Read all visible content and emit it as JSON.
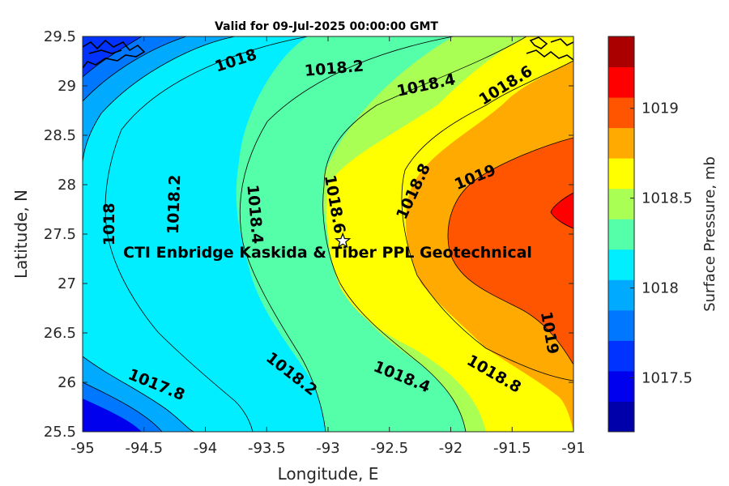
{
  "title": "Valid for 09-Jul-2025 00:00:00 GMT",
  "site_label": "CTI Enbridge  Kaskida & Tiber PPL Geotechnical",
  "site": {
    "lon": -92.88,
    "lat": 27.43
  },
  "colorbar": {
    "label": "Surface Pressure, mb",
    "min": 1017.2,
    "max": 1019.4,
    "ticks": [
      {
        "value": 1017.5,
        "text": "1017.5"
      },
      {
        "value": 1018,
        "text": "1018"
      },
      {
        "value": 1018.5,
        "text": "1018.5"
      },
      {
        "value": 1019,
        "text": "1019"
      }
    ],
    "levels": [
      1017.2,
      1017.3,
      1017.4,
      1017.5,
      1017.6,
      1017.7,
      1017.8,
      1017.9,
      1018.0,
      1018.1,
      1018.2,
      1018.3,
      1018.4,
      1018.5,
      1018.6,
      1018.7,
      1018.8,
      1018.9,
      1019.0,
      1019.1,
      1019.2,
      1019.3,
      1019.4
    ],
    "colors": [
      "#0000aa",
      "#0000ee",
      "#0033ff",
      "#0077ff",
      "#00aaff",
      "#00eeff",
      "#55ffaa",
      "#aaff55",
      "#ffff00",
      "#ffaa00",
      "#ff5500",
      "#ff0000",
      "#aa0000"
    ]
  },
  "chart_data": {
    "type": "contour",
    "title": "Valid for 09-Jul-2025 00:00:00 GMT",
    "xlabel": "Longitude, E",
    "ylabel": "Latitude, N",
    "xlim": [
      -95,
      -91
    ],
    "ylim": [
      25.5,
      29.5
    ],
    "x_ticks": [
      {
        "value": -95,
        "text": "-95"
      },
      {
        "value": -94.5,
        "text": "-94.5"
      },
      {
        "value": -94,
        "text": "-94"
      },
      {
        "value": -93.5,
        "text": "-93.5"
      },
      {
        "value": -93,
        "text": "-93"
      },
      {
        "value": -92.5,
        "text": "-92.5"
      },
      {
        "value": -92,
        "text": "-92"
      },
      {
        "value": -91.5,
        "text": "-91.5"
      },
      {
        "value": -91,
        "text": "-91"
      }
    ],
    "y_ticks": [
      {
        "value": 25.5,
        "text": "25.5"
      },
      {
        "value": 26,
        "text": "26"
      },
      {
        "value": 26.5,
        "text": "26.5"
      },
      {
        "value": 27,
        "text": "27"
      },
      {
        "value": 27.5,
        "text": "27.5"
      },
      {
        "value": 28,
        "text": "28"
      },
      {
        "value": 28.5,
        "text": "28.5"
      },
      {
        "value": 29,
        "text": "29"
      },
      {
        "value": 29.5,
        "text": "29.5"
      }
    ],
    "contour_labels": [
      {
        "text": "1018",
        "lon": -93.75,
        "lat": 29.25,
        "angle": -18
      },
      {
        "text": "1018.2",
        "lon": -92.95,
        "lat": 29.17,
        "angle": -5
      },
      {
        "text": "1018.4",
        "lon": -92.2,
        "lat": 29.0,
        "angle": -12
      },
      {
        "text": "1018.6",
        "lon": -91.55,
        "lat": 29.0,
        "angle": -32
      },
      {
        "text": "1019",
        "lon": -91.8,
        "lat": 28.07,
        "angle": -22
      },
      {
        "text": "1018.8",
        "lon": -92.3,
        "lat": 27.93,
        "angle": -65
      },
      {
        "text": "1018",
        "lon": -94.78,
        "lat": 27.6,
        "angle": -90
      },
      {
        "text": "1018.2",
        "lon": -94.25,
        "lat": 27.8,
        "angle": -88
      },
      {
        "text": "1018.4",
        "lon": -93.6,
        "lat": 27.7,
        "angle": 85
      },
      {
        "text": "1018.6",
        "lon": -92.95,
        "lat": 27.8,
        "angle": 80
      },
      {
        "text": "1019",
        "lon": -91.2,
        "lat": 26.5,
        "angle": 80
      },
      {
        "text": "1017.8",
        "lon": -94.4,
        "lat": 25.97,
        "angle": 22
      },
      {
        "text": "1018.2",
        "lon": -93.3,
        "lat": 26.08,
        "angle": 38
      },
      {
        "text": "1018.4",
        "lon": -92.4,
        "lat": 26.05,
        "angle": 22
      },
      {
        "text": "1018.8",
        "lon": -91.65,
        "lat": 26.08,
        "angle": 30
      }
    ]
  }
}
